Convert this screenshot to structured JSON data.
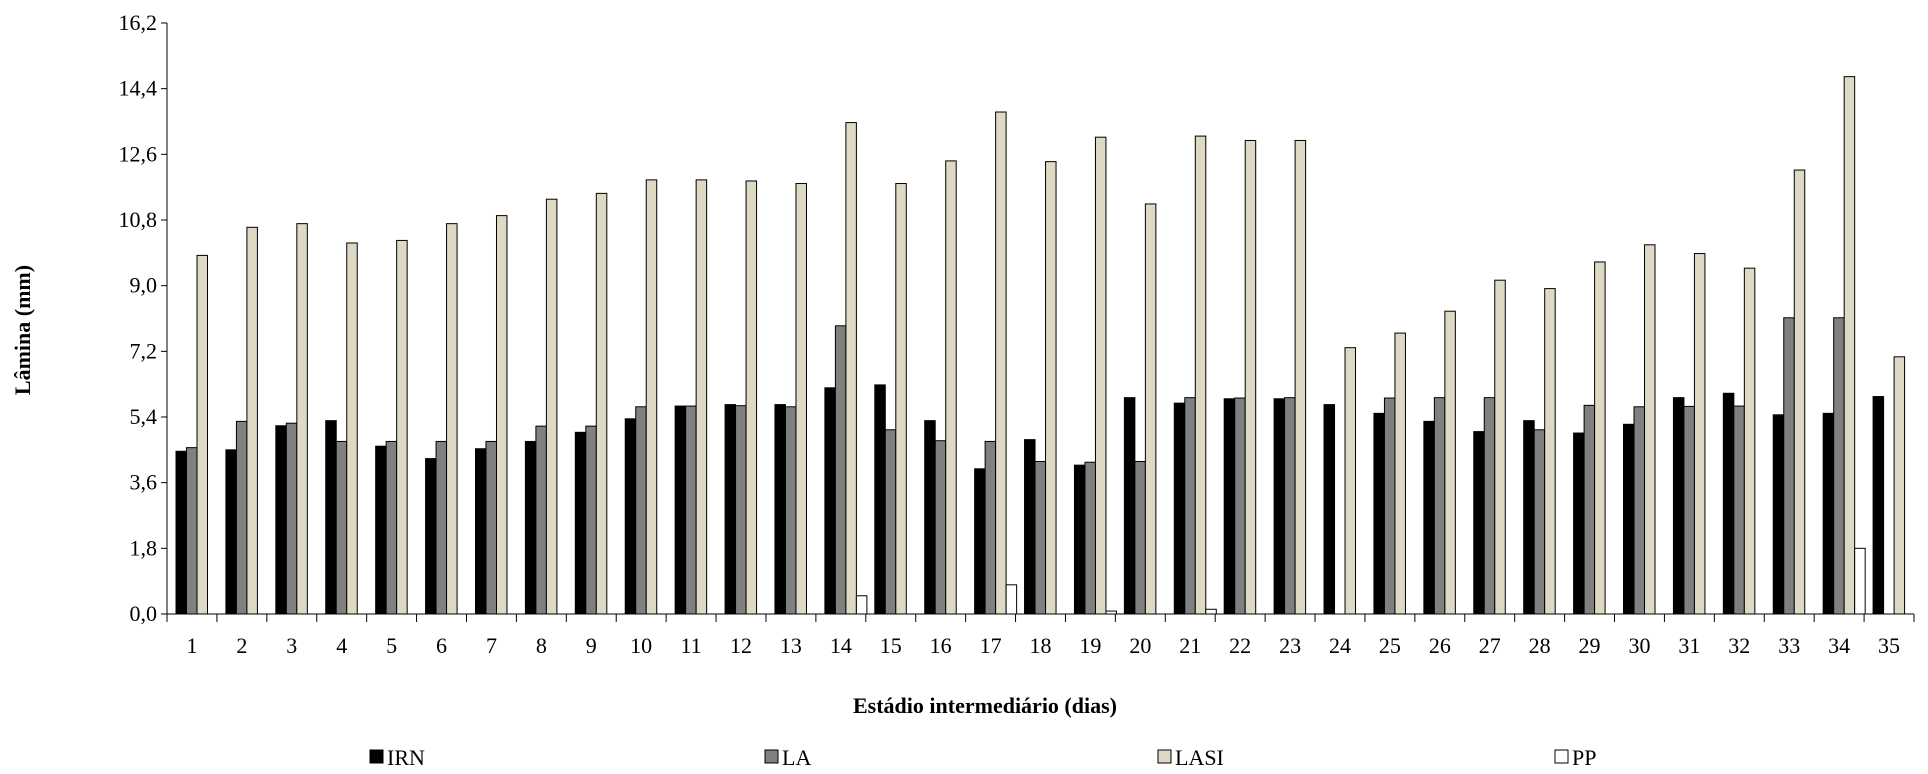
{
  "chart_data": {
    "type": "bar",
    "xlabel": "Estádio intermediário (dias)",
    "ylabel": "Lâmina (mm)",
    "ylim": [
      0,
      16.2
    ],
    "yticks": [
      "0,0",
      "1,8",
      "3,6",
      "5,4",
      "7,2",
      "9,0",
      "10,8",
      "12,6",
      "14,4",
      "16,2"
    ],
    "grid": false,
    "legend_position": "bottom",
    "categories": [
      "1",
      "2",
      "3",
      "4",
      "5",
      "6",
      "7",
      "8",
      "9",
      "10",
      "11",
      "12",
      "13",
      "14",
      "15",
      "16",
      "17",
      "18",
      "19",
      "20",
      "21",
      "22",
      "23",
      "24",
      "25",
      "26",
      "27",
      "28",
      "29",
      "30",
      "31",
      "32",
      "33",
      "34",
      "35"
    ],
    "series": [
      {
        "name": "IRN",
        "color": "#000000",
        "values": [
          4.46,
          4.5,
          5.16,
          5.3,
          4.6,
          4.26,
          4.53,
          4.73,
          4.98,
          5.35,
          5.7,
          5.74,
          5.74,
          6.2,
          6.28,
          5.3,
          3.98,
          4.78,
          4.08,
          5.93,
          5.78,
          5.9,
          5.9,
          5.74,
          5.5,
          5.28,
          5.0,
          5.3,
          4.96,
          5.2,
          5.93,
          6.05,
          5.46,
          5.5,
          5.96
        ]
      },
      {
        "name": "LA",
        "color": "#808080",
        "values": [
          4.56,
          5.28,
          5.23,
          4.73,
          4.73,
          4.73,
          4.73,
          5.15,
          5.15,
          5.68,
          5.7,
          5.71,
          5.68,
          7.9,
          5.05,
          4.75,
          4.73,
          4.18,
          4.16,
          4.18,
          5.93,
          5.92,
          5.93,
          0,
          5.92,
          5.93,
          5.93,
          5.05,
          5.72,
          5.68,
          5.69,
          5.7,
          8.12,
          8.12,
          0
        ]
      },
      {
        "name": "LASI",
        "color": "#ddd9c4",
        "values": [
          9.83,
          10.6,
          10.7,
          10.17,
          10.24,
          10.7,
          10.92,
          11.37,
          11.53,
          11.9,
          11.9,
          11.87,
          11.8,
          13.47,
          11.8,
          12.42,
          13.76,
          12.4,
          13.07,
          11.24,
          13.1,
          12.98,
          12.98,
          7.3,
          7.7,
          8.3,
          9.15,
          8.92,
          9.65,
          10.12,
          9.88,
          9.48,
          12.17,
          14.73,
          7.05
        ]
      },
      {
        "name": "PP",
        "color": "#ffffff",
        "values": [
          0,
          0,
          0,
          0,
          0,
          0,
          0,
          0,
          0,
          0,
          0,
          0,
          0,
          0.5,
          0,
          0,
          0.8,
          0,
          0.08,
          0,
          0.13,
          0,
          0,
          0,
          0,
          0,
          0,
          0,
          0,
          0,
          0,
          0,
          0,
          1.8,
          0
        ]
      }
    ]
  }
}
